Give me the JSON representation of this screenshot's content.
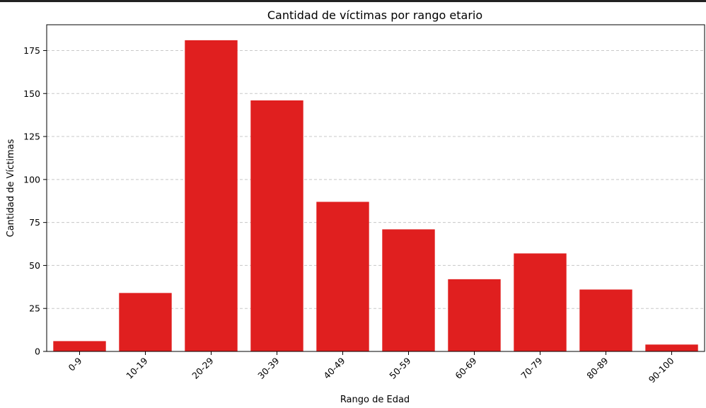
{
  "colors": {
    "bar": "#e01f1f",
    "grid": "#c8c8c8",
    "axis": "#000000"
  },
  "chart_data": {
    "type": "bar",
    "title": "Cantidad de víctimas por rango etario",
    "xlabel": "Rango de Edad",
    "ylabel": "Cantidad de Víctimas",
    "categories": [
      "0-9",
      "10-19",
      "20-29",
      "30-39",
      "40-49",
      "50-59",
      "60-69",
      "70-79",
      "80-89",
      "90-100"
    ],
    "values": [
      6,
      34,
      181,
      146,
      87,
      71,
      42,
      57,
      36,
      4
    ],
    "ylim": [
      0,
      190
    ],
    "yticks": [
      "0",
      "25",
      "50",
      "75",
      "100",
      "125",
      "150",
      "175"
    ],
    "grid": "y-dashed",
    "legend": "none"
  }
}
